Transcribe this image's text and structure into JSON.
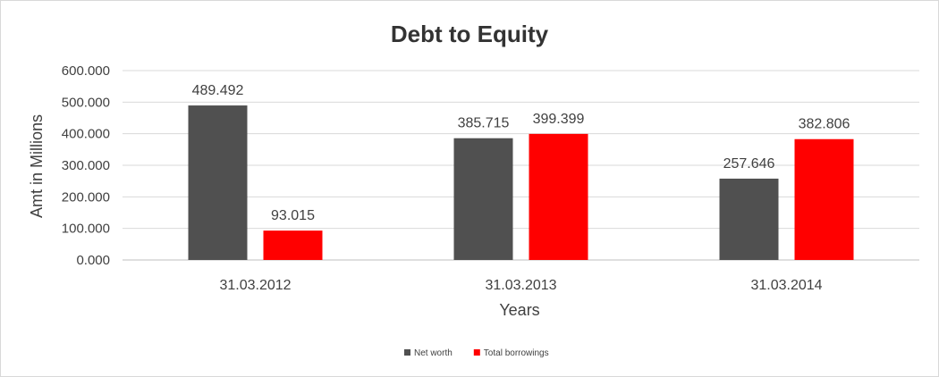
{
  "chart_data": {
    "type": "bar",
    "title": "Debt to Equity",
    "xlabel": "Years",
    "ylabel": "Amt in Millions",
    "categories": [
      "31.03.2012",
      "31.03.2013",
      "31.03.2014"
    ],
    "series": [
      {
        "name": "Net worth",
        "color": "#505050",
        "values": [
          489.492,
          385.715,
          257.646
        ],
        "labels": [
          "489.492",
          "385.715",
          "257.646"
        ]
      },
      {
        "name": "Total borrowings",
        "color": "#ff0000",
        "values": [
          93.015,
          399.399,
          382.806
        ],
        "labels": [
          "93.015",
          "399.399",
          "382.806"
        ]
      }
    ],
    "ylim": [
      0,
      600
    ],
    "yticks": [
      "0.000",
      "100.000",
      "200.000",
      "300.000",
      "400.000",
      "500.000",
      "600.000"
    ],
    "grid": true,
    "legend": "bottom"
  }
}
